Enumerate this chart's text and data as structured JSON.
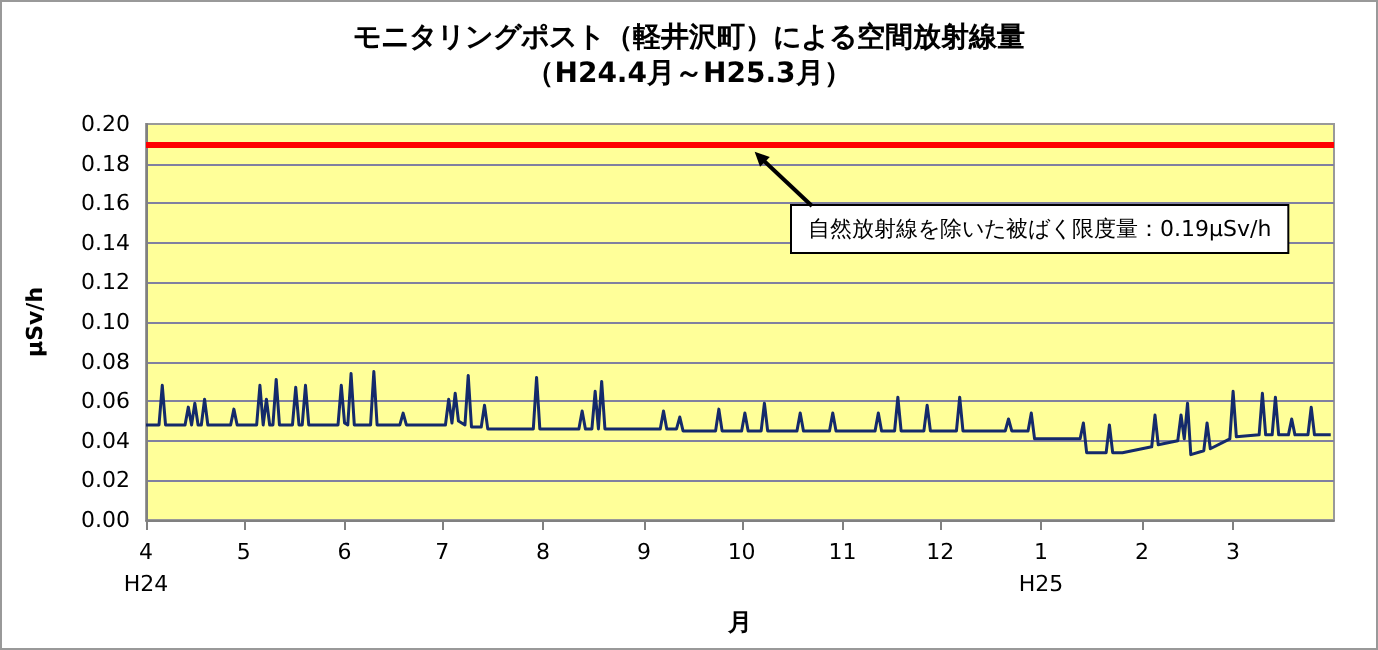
{
  "chart_data": {
    "type": "line",
    "title": "モニタリングポスト（軽井沢町）による空間放射線量",
    "subtitle": "（H24.4月～H25.3月）",
    "xlabel": "月",
    "ylabel": "μSv/h",
    "xlim": [
      "2012-04-01",
      "2013-04-01"
    ],
    "xticks": [
      {
        "value": "2012-04-01",
        "label": "4\nH24"
      },
      {
        "value": "2012-05-01",
        "label": "5"
      },
      {
        "value": "2012-06-01",
        "label": "6"
      },
      {
        "value": "2012-07-01",
        "label": "7"
      },
      {
        "value": "2012-08-01",
        "label": "8"
      },
      {
        "value": "2012-09-01",
        "label": "9"
      },
      {
        "value": "2012-10-01",
        "label": "10"
      },
      {
        "value": "2012-11-01",
        "label": "11"
      },
      {
        "value": "2012-12-01",
        "label": "12"
      },
      {
        "value": "2013-01-01",
        "label": "1\nH25"
      },
      {
        "value": "2013-02-01",
        "label": "2"
      },
      {
        "value": "2013-03-01",
        "label": "3"
      }
    ],
    "ylim": [
      0,
      0.2
    ],
    "yticks": [
      {
        "value": 0,
        "label": "0.00"
      },
      {
        "value": 0.02,
        "label": "0.02"
      },
      {
        "value": 0.04,
        "label": "0.04"
      },
      {
        "value": 0.06,
        "label": "0.06"
      },
      {
        "value": 0.08,
        "label": "0.08"
      },
      {
        "value": 0.1,
        "label": "0.10"
      },
      {
        "value": 0.12,
        "label": "0.12"
      },
      {
        "value": 0.14,
        "label": "0.14"
      },
      {
        "value": 0.16,
        "label": "0.16"
      },
      {
        "value": 0.18,
        "label": "0.18"
      },
      {
        "value": 0.2,
        "label": "0.20"
      }
    ],
    "grid": "y",
    "marker": "none",
    "ref_lines": [
      {
        "axis": "y",
        "value": 0.19,
        "color": "#ff0000"
      }
    ],
    "annotations": [
      {
        "text": "自然放射線を除いた被ばく限度量：0.19μSv/h",
        "x": "2012-10-05",
        "y": 0.19
      }
    ],
    "series": [
      {
        "color": "#142a6b",
        "x": [
          "2012-04-01",
          "2012-04-05",
          "2012-04-06",
          "2012-04-07",
          "2012-04-13",
          "2012-04-14",
          "2012-04-15",
          "2012-04-16",
          "2012-04-17",
          "2012-04-18",
          "2012-04-19",
          "2012-04-20",
          "2012-04-27",
          "2012-04-28",
          "2012-04-29",
          "2012-05-05",
          "2012-05-06",
          "2012-05-07",
          "2012-05-08",
          "2012-05-09",
          "2012-05-10",
          "2012-05-11",
          "2012-05-12",
          "2012-05-16",
          "2012-05-17",
          "2012-05-18",
          "2012-05-19",
          "2012-05-20",
          "2012-05-21",
          "2012-05-30",
          "2012-05-31",
          "2012-06-01",
          "2012-06-02",
          "2012-06-03",
          "2012-06-04",
          "2012-06-09",
          "2012-06-10",
          "2012-06-11",
          "2012-06-18",
          "2012-06-19",
          "2012-06-20",
          "2012-07-02",
          "2012-07-03",
          "2012-07-04",
          "2012-07-05",
          "2012-07-06",
          "2012-07-08",
          "2012-07-09",
          "2012-07-10",
          "2012-07-13",
          "2012-07-14",
          "2012-07-15",
          "2012-07-29",
          "2012-07-30",
          "2012-07-31",
          "2012-08-12",
          "2012-08-13",
          "2012-08-14",
          "2012-08-16",
          "2012-08-17",
          "2012-08-18",
          "2012-08-19",
          "2012-08-20",
          "2012-09-06",
          "2012-09-07",
          "2012-09-08",
          "2012-09-11",
          "2012-09-12",
          "2012-09-13",
          "2012-09-23",
          "2012-09-24",
          "2012-09-25",
          "2012-10-01",
          "2012-10-02",
          "2012-10-03",
          "2012-10-07",
          "2012-10-08",
          "2012-10-09",
          "2012-10-18",
          "2012-10-19",
          "2012-10-20",
          "2012-10-28",
          "2012-10-29",
          "2012-10-30",
          "2012-11-11",
          "2012-11-12",
          "2012-11-13",
          "2012-11-17",
          "2012-11-18",
          "2012-11-19",
          "2012-11-26",
          "2012-11-27",
          "2012-11-28",
          "2012-12-06",
          "2012-12-07",
          "2012-12-08",
          "2012-12-21",
          "2012-12-22",
          "2012-12-23",
          "2012-12-28",
          "2012-12-29",
          "2012-12-30",
          "2013-01-13",
          "2013-01-14",
          "2013-01-15",
          "2013-01-21",
          "2013-01-22",
          "2013-01-23",
          "2013-01-26",
          "2013-02-04",
          "2013-02-05",
          "2013-02-06",
          "2013-02-12",
          "2013-02-13",
          "2013-02-14",
          "2013-02-15",
          "2013-02-16",
          "2013-02-20",
          "2013-02-21",
          "2013-02-22",
          "2013-02-28",
          "2013-03-01",
          "2013-03-02",
          "2013-03-09",
          "2013-03-10",
          "2013-03-11",
          "2013-03-13",
          "2013-03-14",
          "2013-03-15",
          "2013-03-18",
          "2013-03-19",
          "2013-03-20",
          "2013-03-24",
          "2013-03-25",
          "2013-03-26",
          "2013-03-31"
        ],
        "values": [
          0.048,
          0.048,
          0.068,
          0.048,
          0.048,
          0.057,
          0.048,
          0.059,
          0.048,
          0.048,
          0.061,
          0.048,
          0.048,
          0.056,
          0.048,
          0.048,
          0.068,
          0.048,
          0.061,
          0.048,
          0.048,
          0.071,
          0.048,
          0.048,
          0.067,
          0.048,
          0.048,
          0.068,
          0.048,
          0.048,
          0.068,
          0.049,
          0.048,
          0.074,
          0.048,
          0.048,
          0.075,
          0.048,
          0.048,
          0.054,
          0.048,
          0.048,
          0.061,
          0.049,
          0.064,
          0.05,
          0.048,
          0.073,
          0.047,
          0.047,
          0.058,
          0.046,
          0.046,
          0.072,
          0.046,
          0.046,
          0.055,
          0.046,
          0.046,
          0.065,
          0.046,
          0.07,
          0.046,
          0.046,
          0.055,
          0.046,
          0.046,
          0.052,
          0.045,
          0.045,
          0.056,
          0.045,
          0.045,
          0.054,
          0.045,
          0.045,
          0.059,
          0.045,
          0.045,
          0.054,
          0.045,
          0.045,
          0.054,
          0.045,
          0.045,
          0.054,
          0.045,
          0.045,
          0.062,
          0.045,
          0.045,
          0.058,
          0.045,
          0.045,
          0.062,
          0.045,
          0.045,
          0.051,
          0.045,
          0.045,
          0.054,
          0.041,
          0.041,
          0.049,
          0.034,
          0.034,
          0.048,
          0.034,
          0.034,
          0.037,
          0.053,
          0.038,
          0.04,
          0.053,
          0.041,
          0.059,
          0.033,
          0.035,
          0.049,
          0.036,
          0.041,
          0.065,
          0.042,
          0.043,
          0.064,
          0.043,
          0.043,
          0.062,
          0.043,
          0.043,
          0.051,
          0.043,
          0.043,
          0.057,
          0.043,
          0.043
        ]
      }
    ]
  }
}
